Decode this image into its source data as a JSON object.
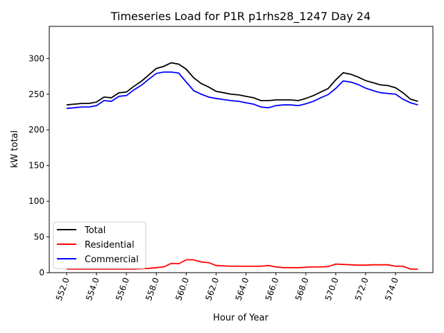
{
  "chart_data": {
    "type": "line",
    "title": "Timeseries Load for P1R p1rhs28_1247  Day 24",
    "xlabel": "Hour of Year",
    "ylabel": "kW total",
    "xlim": [
      550.84,
      576.5
    ],
    "ylim": [
      0,
      345
    ],
    "xticks": [
      552,
      554,
      556,
      558,
      560,
      562,
      564,
      566,
      568,
      570,
      572,
      574
    ],
    "xtick_labels": [
      "552.0",
      "554.0",
      "556.0",
      "558.0",
      "560.0",
      "562.0",
      "564.0",
      "566.0",
      "568.0",
      "570.0",
      "572.0",
      "574.0"
    ],
    "yticks": [
      0,
      50,
      100,
      150,
      200,
      250,
      300
    ],
    "ytick_labels": [
      "0",
      "50",
      "100",
      "150",
      "200",
      "250",
      "300"
    ],
    "grid": false,
    "legend_position": "lower-left",
    "x": [
      552,
      552.5,
      553,
      553.5,
      554,
      554.5,
      555,
      555.5,
      556,
      556.5,
      557,
      557.5,
      558,
      558.5,
      559,
      559.5,
      560,
      560.5,
      561,
      561.5,
      562,
      562.5,
      563,
      563.5,
      564,
      564.5,
      565,
      565.5,
      566,
      566.5,
      567,
      567.5,
      568,
      568.5,
      569,
      569.5,
      570,
      570.5,
      571,
      571.5,
      572,
      572.5,
      573,
      573.5,
      574,
      574.5,
      575,
      575.5
    ],
    "series": [
      {
        "name": "Total",
        "color": "#000000",
        "values": [
          235,
          236,
          237,
          237,
          239,
          246,
          245,
          252,
          253,
          261,
          268,
          277,
          286,
          289,
          294,
          292,
          285,
          273,
          265,
          260,
          254,
          252,
          250,
          249,
          247,
          245,
          241,
          241,
          242,
          242,
          242,
          241,
          244,
          248,
          253,
          258,
          270,
          280,
          278,
          274,
          269,
          266,
          263,
          262,
          259,
          252,
          243,
          240
        ]
      },
      {
        "name": "Residential",
        "color": "#ff0000",
        "values": [
          5,
          5,
          5,
          5,
          5,
          5,
          5,
          5,
          5,
          5,
          5.5,
          6,
          7,
          8,
          13,
          12.5,
          18,
          18,
          15,
          14,
          10,
          9.5,
          9,
          9,
          9,
          9,
          9,
          10,
          8,
          7,
          7,
          7,
          7.5,
          8,
          8,
          8.5,
          12,
          11.5,
          11,
          10.5,
          10.5,
          11,
          11,
          11,
          9,
          9,
          5,
          5
        ]
      },
      {
        "name": "Commercial",
        "color": "#0000ff",
        "values": [
          230,
          231,
          232,
          232,
          234,
          241,
          240,
          247,
          248,
          256,
          262.5,
          271,
          279,
          281,
          281,
          279.5,
          267,
          255,
          250,
          246,
          244,
          242.5,
          241,
          240,
          238,
          236,
          232,
          231,
          234,
          235,
          235,
          234,
          236.5,
          240,
          245,
          249.5,
          258,
          268.5,
          267,
          263.5,
          258.5,
          255,
          252,
          251,
          250,
          243,
          238,
          235
        ]
      }
    ]
  }
}
